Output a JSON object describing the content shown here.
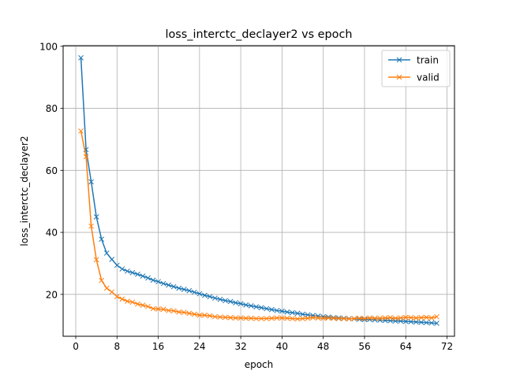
{
  "chart_data": {
    "type": "line",
    "title": "loss_interctc_declayer2 vs epoch",
    "xlabel": "epoch",
    "ylabel": "loss_interctc_declayer2",
    "xlim": [
      -2.45,
      73.45
    ],
    "ylim": [
      6.5,
      100.2
    ],
    "xticks": [
      0,
      8,
      16,
      24,
      32,
      40,
      48,
      56,
      64,
      72
    ],
    "yticks": [
      20,
      40,
      60,
      80,
      100
    ],
    "grid": true,
    "legend_position": "top-right",
    "marker": "x",
    "series": [
      {
        "name": "train",
        "color": "#1f77b4",
        "x": [
          1,
          2,
          3,
          4,
          5,
          6,
          7,
          8,
          9,
          10,
          11,
          12,
          13,
          14,
          15,
          16,
          17,
          18,
          19,
          20,
          21,
          22,
          23,
          24,
          25,
          26,
          27,
          28,
          29,
          30,
          31,
          32,
          33,
          34,
          35,
          36,
          37,
          38,
          39,
          40,
          41,
          42,
          43,
          44,
          45,
          46,
          47,
          48,
          49,
          50,
          51,
          52,
          53,
          54,
          55,
          56,
          57,
          58,
          59,
          60,
          61,
          62,
          63,
          64,
          65,
          66,
          67,
          68,
          69,
          70
        ],
        "values": [
          96.3,
          66.7,
          56.3,
          45.0,
          37.8,
          33.3,
          31.3,
          29.4,
          28.2,
          27.5,
          27.0,
          26.5,
          25.9,
          25.3,
          24.6,
          24.1,
          23.5,
          23.0,
          22.5,
          22.0,
          21.6,
          21.2,
          20.7,
          20.2,
          19.7,
          19.3,
          18.8,
          18.4,
          18.0,
          17.7,
          17.3,
          17.0,
          16.6,
          16.3,
          16.0,
          15.7,
          15.4,
          15.1,
          14.8,
          14.6,
          14.3,
          14.1,
          13.9,
          13.6,
          13.4,
          13.2,
          13.0,
          12.8,
          12.7,
          12.5,
          12.4,
          12.3,
          12.2,
          12.1,
          12.0,
          11.9,
          11.9,
          11.8,
          11.7,
          11.6,
          11.5,
          11.4,
          11.4,
          11.3,
          11.2,
          11.1,
          11.0,
          10.9,
          10.8,
          10.7
        ]
      },
      {
        "name": "valid",
        "color": "#ff7f0e",
        "x": [
          1,
          2,
          3,
          4,
          5,
          6,
          7,
          8,
          9,
          10,
          11,
          12,
          13,
          14,
          15,
          16,
          17,
          18,
          19,
          20,
          21,
          22,
          23,
          24,
          25,
          26,
          27,
          28,
          29,
          30,
          31,
          32,
          33,
          34,
          35,
          36,
          37,
          38,
          39,
          40,
          41,
          42,
          43,
          44,
          45,
          46,
          47,
          48,
          49,
          50,
          51,
          52,
          53,
          54,
          55,
          56,
          57,
          58,
          59,
          60,
          61,
          62,
          63,
          64,
          65,
          66,
          67,
          68,
          69,
          70
        ],
        "values": [
          72.7,
          64.4,
          42.0,
          31.2,
          24.5,
          22.0,
          20.8,
          19.3,
          18.5,
          17.8,
          17.5,
          16.9,
          16.5,
          16.1,
          15.4,
          15.3,
          15.2,
          14.8,
          14.7,
          14.3,
          14.2,
          13.9,
          13.6,
          13.3,
          13.3,
          13.1,
          12.8,
          12.7,
          12.6,
          12.5,
          12.4,
          12.4,
          12.3,
          12.3,
          12.2,
          12.2,
          12.2,
          12.3,
          12.4,
          12.4,
          12.3,
          12.2,
          12.1,
          12.2,
          12.3,
          12.5,
          12.4,
          12.3,
          12.4,
          12.3,
          12.2,
          12.2,
          12.1,
          12.2,
          12.3,
          12.2,
          12.4,
          12.3,
          12.3,
          12.4,
          12.5,
          12.3,
          12.4,
          12.6,
          12.5,
          12.4,
          12.5,
          12.6,
          12.4,
          12.8
        ]
      }
    ]
  }
}
